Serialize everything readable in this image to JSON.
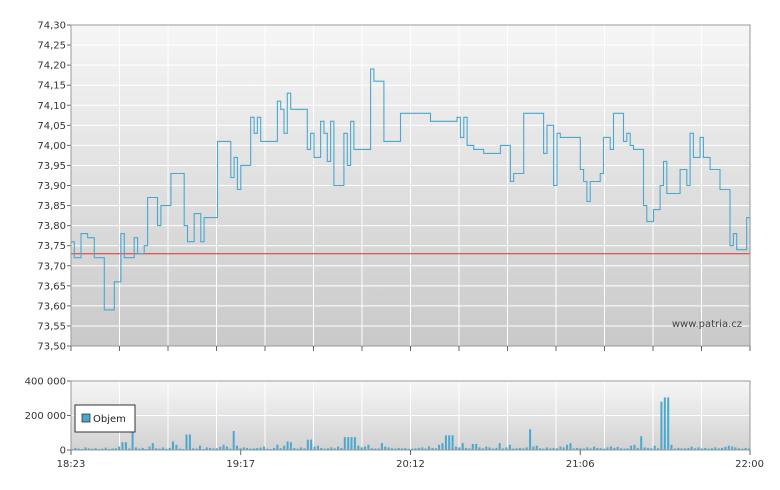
{
  "chart_data": [
    {
      "type": "line",
      "ylim": [
        73.5,
        74.3
      ],
      "y_ticks": [
        "73,50",
        "73,55",
        "73,60",
        "73,65",
        "73,70",
        "73,75",
        "73,80",
        "73,85",
        "73,90",
        "73,95",
        "74,00",
        "74,05",
        "74,10",
        "74,15",
        "74,20",
        "74,25",
        "74,30"
      ],
      "reference_line": 73.73,
      "grid": true,
      "series": [
        {
          "color": "#4aa8cf",
          "values": [
            73.76,
            73.72,
            73.72,
            73.78,
            73.78,
            73.77,
            73.77,
            73.72,
            73.72,
            73.72,
            73.59,
            73.59,
            73.59,
            73.66,
            73.66,
            73.78,
            73.72,
            73.72,
            73.72,
            73.77,
            73.73,
            73.73,
            73.75,
            73.87,
            73.87,
            73.87,
            73.8,
            73.85,
            73.85,
            73.85,
            73.93,
            73.93,
            73.93,
            73.93,
            73.8,
            73.76,
            73.76,
            73.83,
            73.83,
            73.76,
            73.82,
            73.82,
            73.82,
            73.82,
            74.01,
            74.01,
            74.01,
            74.01,
            73.92,
            73.97,
            73.89,
            73.95,
            73.95,
            73.95,
            74.07,
            74.03,
            74.07,
            74.01,
            74.01,
            74.01,
            74.01,
            74.01,
            74.11,
            74.09,
            74.03,
            74.13,
            74.09,
            74.09,
            74.09,
            74.09,
            74.09,
            73.99,
            74.03,
            73.97,
            73.97,
            74.06,
            74.03,
            73.96,
            74.06,
            73.9,
            73.9,
            73.9,
            74.03,
            73.95,
            74.06,
            73.99,
            73.99,
            73.99,
            73.99,
            73.99,
            74.19,
            74.16,
            74.16,
            74.16,
            74.01,
            74.01,
            74.01,
            74.01,
            74.01,
            74.08,
            74.08,
            74.08,
            74.08,
            74.08,
            74.08,
            74.08,
            74.08,
            74.08,
            74.06,
            74.06,
            74.06,
            74.06,
            74.06,
            74.06,
            74.06,
            74.06,
            74.07,
            74.02,
            74.07,
            74.0,
            74.0,
            73.99,
            73.99,
            73.99,
            73.98,
            73.98,
            73.98,
            73.98,
            73.98,
            74.0,
            74.0,
            74.0,
            73.91,
            73.93,
            73.93,
            73.93,
            74.08,
            74.08,
            74.08,
            74.08,
            74.08,
            74.08,
            73.98,
            74.05,
            74.05,
            73.9,
            74.03,
            74.02,
            74.02,
            74.02,
            74.02,
            74.02,
            74.02,
            73.94,
            73.91,
            73.86,
            73.91,
            73.91,
            73.91,
            73.93,
            74.02,
            74.02,
            73.99,
            74.08,
            74.08,
            74.08,
            74.01,
            74.03,
            74.0,
            73.99,
            73.99,
            73.99,
            73.85,
            73.81,
            73.81,
            73.84,
            73.84,
            73.9,
            73.96,
            73.88,
            73.88,
            73.88,
            73.88,
            73.94,
            73.94,
            73.9,
            74.03,
            73.97,
            73.97,
            74.02,
            73.97,
            73.97,
            73.94,
            73.94,
            73.94,
            73.89,
            73.89,
            73.89,
            73.75,
            73.78,
            73.74,
            73.74,
            73.74,
            73.82,
            73.73
          ]
        }
      ]
    },
    {
      "type": "bar",
      "ylim": [
        0,
        400000
      ],
      "y_ticks": [
        "0",
        "200 000",
        "400 000"
      ],
      "x_ticks": [
        "18:23",
        "19:17",
        "20:12",
        "21:06",
        "22:00"
      ],
      "legend": {
        "label": "Objem",
        "color": "#4aa8cf",
        "placement": "bottom-left"
      },
      "grid": true,
      "values": [
        5000,
        12000,
        8000,
        6000,
        15000,
        9000,
        7000,
        11000,
        5000,
        8000,
        14000,
        6000,
        9000,
        10000,
        20000,
        45000,
        45000,
        9000,
        160000,
        15000,
        8000,
        12000,
        6000,
        20000,
        40000,
        10000,
        8000,
        15000,
        7000,
        12000,
        50000,
        30000,
        8000,
        6000,
        90000,
        90000,
        10000,
        8000,
        25000,
        6000,
        15000,
        12000,
        9000,
        10000,
        18000,
        30000,
        20000,
        8000,
        110000,
        25000,
        10000,
        15000,
        12000,
        8000,
        9000,
        11000,
        14000,
        20000,
        8000,
        6000,
        12000,
        30000,
        10000,
        25000,
        50000,
        45000,
        12000,
        8000,
        15000,
        10000,
        60000,
        60000,
        20000,
        25000,
        12000,
        8000,
        10000,
        15000,
        9000,
        20000,
        12000,
        75000,
        75000,
        75000,
        75000,
        25000,
        15000,
        20000,
        30000,
        10000,
        8000,
        9000,
        40000,
        20000,
        15000,
        10000,
        8000,
        12000,
        9000,
        11000,
        7000,
        8000,
        10000,
        12000,
        15000,
        9000,
        20000,
        12000,
        10000,
        30000,
        40000,
        85000,
        85000,
        85000,
        20000,
        15000,
        40000,
        12000,
        9000,
        35000,
        35000,
        15000,
        10000,
        20000,
        15000,
        8000,
        12000,
        40000,
        9000,
        15000,
        30000,
        8000,
        10000,
        12000,
        9000,
        15000,
        120000,
        20000,
        25000,
        10000,
        8000,
        15000,
        9000,
        12000,
        10000,
        20000,
        15000,
        30000,
        40000,
        9000,
        12000,
        10000,
        8000,
        15000,
        9000,
        20000,
        12000,
        10000,
        8000,
        15000,
        20000,
        12000,
        18000,
        10000,
        8000,
        9000,
        25000,
        30000,
        12000,
        80000,
        15000,
        12000,
        10000,
        25000,
        10000,
        280000,
        305000,
        305000,
        30000,
        8000,
        12000,
        10000,
        9000,
        12000,
        20000,
        10000,
        15000,
        9000,
        12000,
        8000,
        10000,
        15000,
        9000,
        12000,
        18000,
        25000,
        20000,
        15000,
        10000,
        8000,
        12000,
        9000
      ]
    }
  ],
  "watermark": "www.patria.cz"
}
